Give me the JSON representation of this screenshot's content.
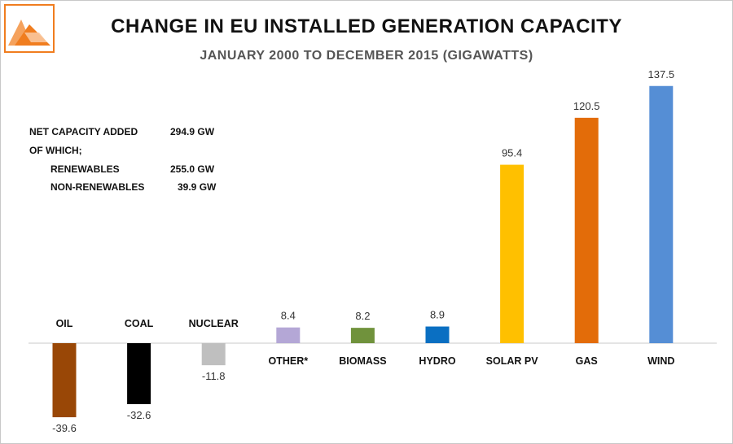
{
  "chart_data": {
    "type": "bar",
    "title": "CHANGE IN EU INSTALLED GENERATION CAPACITY",
    "subtitle": "JANUARY 2000 TO DECEMBER 2015 (GIGAWATTS)",
    "xlabel": "",
    "ylabel": "",
    "ylim": [
      -40,
      140
    ],
    "grid": false,
    "legend": "none",
    "categories": [
      "OIL",
      "COAL",
      "NUCLEAR",
      "OTHER*",
      "BIOMASS",
      "HYDRO",
      "SOLAR PV",
      "GAS",
      "WIND"
    ],
    "values": [
      -39.6,
      -32.6,
      -11.8,
      8.4,
      8.2,
      8.9,
      95.4,
      120.5,
      137.5
    ],
    "value_labels": [
      "-39.6",
      "-32.6",
      "-11.8",
      "8.4",
      "8.2",
      "8.9",
      "95.4",
      "120.5",
      "137.5"
    ],
    "colors": [
      "#994706",
      "#000000",
      "#bfbfbf",
      "#b4a7d6",
      "#70923c",
      "#0a6fc2",
      "#ffc000",
      "#e36c09",
      "#558ed5"
    ]
  },
  "annotation": {
    "net_label": "NET CAPACITY  ADDED",
    "net_value": "294.9  GW",
    "of_which": "OF WHICH;",
    "renewables_label": "RENEWABLES",
    "renewables_value": "255.0 GW",
    "nonrenewables_label": "NON-RENEWABLES",
    "nonrenewables_value": "39.9 GW"
  },
  "logo": {
    "name": "triangle-logo-icon",
    "border_color": "#f07d1f",
    "fill_color": "#f07d1f"
  }
}
